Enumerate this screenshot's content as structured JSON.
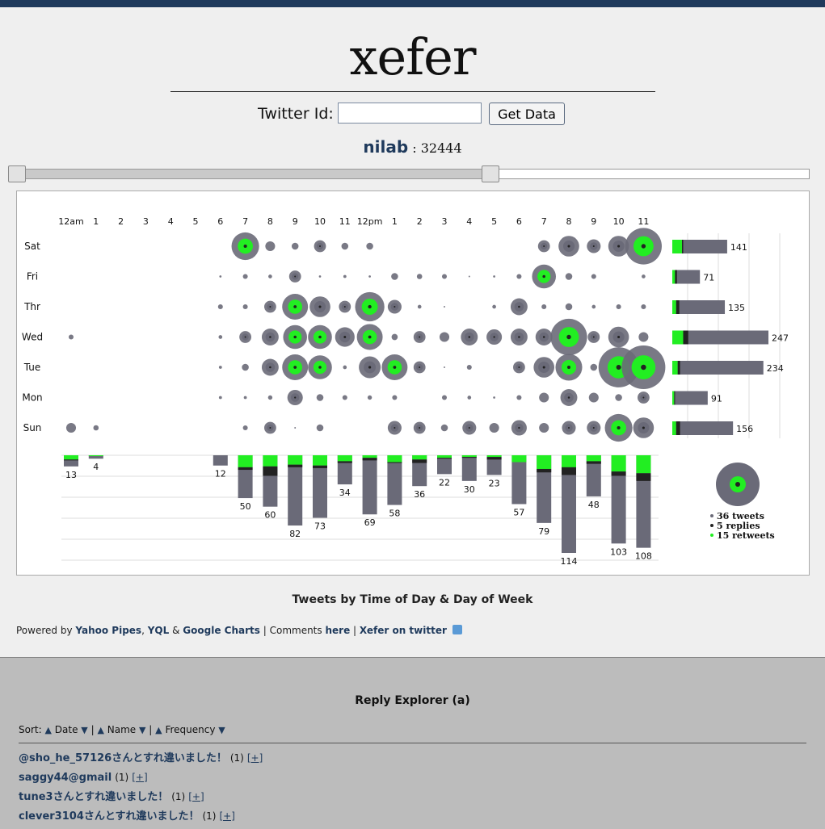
{
  "app": {
    "logo": "xefer"
  },
  "twitter_form": {
    "label": "Twitter Id:",
    "input_value": "",
    "button_label": "Get Data"
  },
  "user": {
    "name": "nilab",
    "separator": ":",
    "count": "32444"
  },
  "slider": {
    "position_fraction": 0.6
  },
  "chart_data": {
    "type": "punchcard",
    "title": "Tweets by Time of Day & Day of Week",
    "hours": [
      "12am",
      "1",
      "2",
      "3",
      "4",
      "5",
      "6",
      "7",
      "8",
      "9",
      "10",
      "11",
      "12pm",
      "1",
      "2",
      "3",
      "4",
      "5",
      "6",
      "7",
      "8",
      "9",
      "10",
      "11"
    ],
    "days": [
      "Sat",
      "Fri",
      "Thr",
      "Wed",
      "Tue",
      "Mon",
      "Sun"
    ],
    "day_totals": [
      141,
      71,
      135,
      247,
      234,
      91,
      156
    ],
    "day_totals_retweets": [
      25,
      7,
      10,
      28,
      14,
      5,
      10
    ],
    "day_totals_replies": [
      3,
      5,
      8,
      13,
      6,
      2,
      10
    ],
    "hour_totals": [
      13,
      4,
      0,
      0,
      0,
      0,
      12,
      50,
      60,
      82,
      73,
      34,
      69,
      58,
      36,
      22,
      30,
      23,
      57,
      79,
      114,
      48,
      103,
      108
    ],
    "hour_totals_retweets": [
      5,
      1,
      0,
      0,
      0,
      0,
      0,
      14,
      13,
      11,
      12,
      7,
      3,
      8,
      5,
      3,
      2,
      2,
      8,
      16,
      14,
      7,
      19,
      21
    ],
    "hour_totals_replies": [
      1,
      0,
      0,
      0,
      0,
      0,
      0,
      3,
      11,
      3,
      3,
      2,
      3,
      1,
      4,
      1,
      1,
      3,
      0,
      4,
      9,
      3,
      5,
      9
    ],
    "grid": [
      [
        0,
        0,
        0,
        0,
        0,
        0,
        0,
        16,
        2,
        1,
        3,
        1,
        1,
        0,
        0,
        0,
        0,
        0,
        0,
        3,
        9,
        4,
        9,
        28
      ],
      [
        0,
        0,
        0,
        0,
        0,
        0,
        0.1,
        0.5,
        0.3,
        3,
        0.1,
        0.2,
        0.1,
        1,
        0.6,
        0.5,
        0.05,
        0.1,
        0.5,
        12,
        1,
        0.5,
        0,
        0.3
      ],
      [
        0,
        0,
        0,
        0,
        0,
        0,
        0.5,
        0.5,
        3,
        14,
        9,
        3,
        18,
        4,
        0.3,
        0.05,
        0,
        0.3,
        6,
        0.5,
        1,
        0.3,
        0.5,
        0.5
      ],
      [
        0.5,
        0,
        0,
        0,
        0,
        0,
        0.3,
        3,
        6,
        12,
        12,
        8,
        14,
        0.8,
        3,
        2,
        6,
        5,
        6,
        6,
        28,
        3,
        9,
        2
      ],
      [
        0,
        0,
        0,
        0,
        0,
        0,
        0.2,
        1,
        6,
        14,
        12,
        0.3,
        10,
        14,
        3,
        0.05,
        0.5,
        0,
        3,
        9,
        15,
        1,
        34,
        40
      ],
      [
        0,
        0,
        0,
        0,
        0,
        0,
        0.2,
        0.2,
        0.4,
        5,
        1,
        0.5,
        0.4,
        0.5,
        0,
        0.5,
        0.3,
        0.1,
        0.5,
        2,
        6,
        2,
        1,
        3
      ],
      [
        2,
        0.6,
        0,
        0,
        0,
        0,
        0,
        0.5,
        3,
        0.05,
        1,
        0,
        0,
        4,
        3,
        1,
        4,
        2,
        5,
        2,
        4,
        4,
        16,
        9
      ]
    ],
    "legend": {
      "tweets": "36 tweets",
      "replies": "5 replies",
      "retweets": "15 retweets"
    },
    "colors": {
      "tweets": "#6a6a78",
      "replies": "#222222",
      "retweets": "#22ee22"
    }
  },
  "footer": {
    "powered_by": "Powered by",
    "yahoo_pipes": "Yahoo Pipes",
    "comma": ",",
    "yql": "YQL",
    "amp": "&",
    "google_charts": "Google Charts",
    "comments_prefix": "| Comments",
    "here": "here",
    "pipe": "|",
    "xefer_twitter": "Xefer on twitter"
  },
  "reply_explorer": {
    "title": "Reply Explorer (a)",
    "sort_label": "Sort:",
    "sort_date": "Date",
    "sort_name": "Name",
    "sort_frequency": "Frequency",
    "sort_sep": "|",
    "items": [
      {
        "name": "@sho_he_57126さんとすれ違いました！",
        "count": "(1)",
        "expand": "[+]"
      },
      {
        "name": "saggy44@gmail",
        "count": "(1)",
        "expand": "[+]"
      },
      {
        "name": "tune3さんとすれ違いました！",
        "count": "(1)",
        "expand": "[+]"
      },
      {
        "name": "clever3104さんとすれ違いました！",
        "count": "(1)",
        "expand": "[+]"
      }
    ]
  }
}
